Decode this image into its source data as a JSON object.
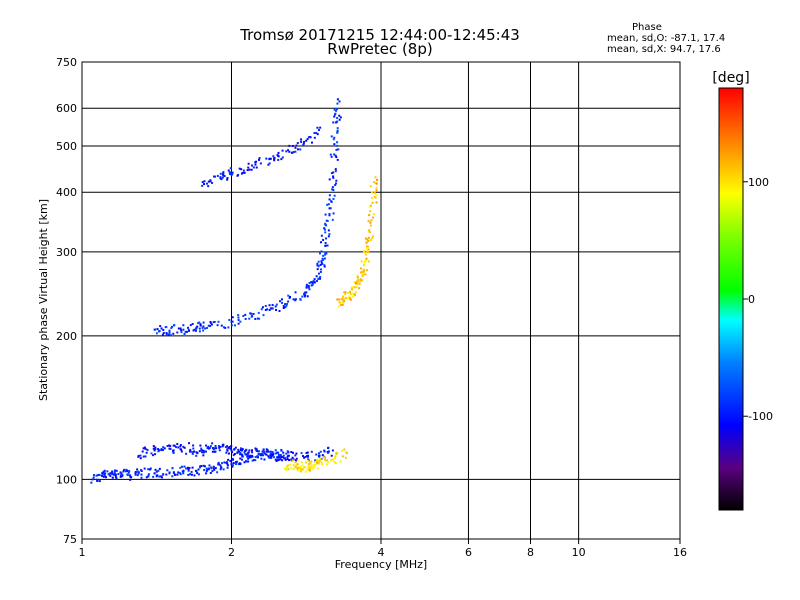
{
  "chart_data": {
    "type": "scatter",
    "title": "Tromsø 20171215 12:44:00-12:45:43",
    "subtitle": "RwPretec (8p)",
    "xlabel": "Frequency [MHz]",
    "ylabel": "Stationary phase Virtual Height [km]",
    "x_scale": "log2",
    "y_scale": "log",
    "xlim": [
      1,
      16
    ],
    "ylim": [
      75,
      750
    ],
    "xticks": [
      {
        "value": 1,
        "label": "1"
      },
      {
        "value": 2,
        "label": "2"
      },
      {
        "value": 4,
        "label": "4"
      },
      {
        "value": 6,
        "label": "6"
      },
      {
        "value": 8,
        "label": "8"
      },
      {
        "value": 10,
        "label": "10"
      },
      {
        "value": 16,
        "label": "16"
      }
    ],
    "yticks": [
      {
        "value": 75,
        "label": "75"
      },
      {
        "value": 100,
        "label": "100"
      },
      {
        "value": 200,
        "label": "200"
      },
      {
        "value": 300,
        "label": "300"
      },
      {
        "value": 400,
        "label": "400"
      },
      {
        "value": 500,
        "label": "500"
      },
      {
        "value": 600,
        "label": "600"
      },
      {
        "value": 750,
        "label": "750"
      }
    ],
    "grid": true,
    "stats": {
      "header": "Phase",
      "o_line": "mean, sd,O: -87.1, 17.4",
      "x_line": "mean, sd,X:  94.7, 17.6"
    },
    "colorbar": {
      "label": "[deg]",
      "range": [
        -180,
        180
      ],
      "ticks": [
        {
          "value": 100,
          "label": "100"
        },
        {
          "value": 0,
          "label": "0"
        },
        {
          "value": -100,
          "label": "-100"
        }
      ]
    },
    "series": [
      {
        "type": "O-mode low trace (E-region)",
        "phase": -95,
        "points": [
          [
            1.05,
            100
          ],
          [
            1.1,
            102
          ],
          [
            1.15,
            103
          ],
          [
            1.2,
            103
          ],
          [
            1.25,
            102
          ],
          [
            1.3,
            103
          ],
          [
            1.4,
            103
          ],
          [
            1.5,
            103
          ],
          [
            1.6,
            104
          ],
          [
            1.7,
            104
          ],
          [
            1.8,
            105
          ],
          [
            1.9,
            107
          ],
          [
            2.0,
            108
          ],
          [
            2.1,
            110
          ],
          [
            2.2,
            112
          ],
          [
            2.3,
            113
          ],
          [
            2.4,
            112
          ],
          [
            2.5,
            111
          ],
          [
            2.6,
            112
          ]
        ]
      },
      {
        "type": "O-mode upper E trace",
        "phase": -100,
        "points": [
          [
            1.3,
            112
          ],
          [
            1.4,
            115
          ],
          [
            1.5,
            116
          ],
          [
            1.6,
            117
          ],
          [
            1.7,
            114
          ],
          [
            1.8,
            116
          ],
          [
            1.9,
            117
          ],
          [
            2.0,
            115
          ],
          [
            2.1,
            115
          ],
          [
            2.2,
            114
          ],
          [
            2.4,
            113
          ],
          [
            2.6,
            112
          ],
          [
            2.8,
            111
          ],
          [
            3.0,
            112
          ],
          [
            3.2,
            115
          ]
        ]
      },
      {
        "type": "X-mode E trace",
        "phase": 100,
        "points": [
          [
            2.6,
            107
          ],
          [
            2.7,
            107
          ],
          [
            2.8,
            106
          ],
          [
            2.9,
            107
          ],
          [
            3.0,
            108
          ],
          [
            3.2,
            110
          ],
          [
            3.4,
            114
          ]
        ]
      },
      {
        "type": "O-mode F trace",
        "phase": -90,
        "points": [
          [
            1.4,
            206
          ],
          [
            1.5,
            205
          ],
          [
            1.6,
            206
          ],
          [
            1.7,
            208
          ],
          [
            1.8,
            210
          ],
          [
            2.0,
            214
          ],
          [
            2.2,
            220
          ],
          [
            2.4,
            228
          ],
          [
            2.6,
            236
          ],
          [
            2.8,
            245
          ],
          [
            2.9,
            255
          ],
          [
            3.0,
            270
          ],
          [
            3.05,
            290
          ],
          [
            3.1,
            320
          ],
          [
            3.15,
            360
          ],
          [
            3.2,
            410
          ],
          [
            3.22,
            480
          ],
          [
            3.25,
            560
          ],
          [
            3.3,
            620
          ]
        ]
      },
      {
        "type": "O-mode F multi-hop",
        "phase": -100,
        "points": [
          [
            1.75,
            420
          ],
          [
            1.9,
            430
          ],
          [
            2.0,
            440
          ],
          [
            2.2,
            455
          ],
          [
            2.4,
            470
          ],
          [
            2.6,
            490
          ],
          [
            2.8,
            510
          ],
          [
            3.0,
            540
          ]
        ]
      },
      {
        "type": "X-mode F trace",
        "phase": 110,
        "points": [
          [
            3.3,
            235
          ],
          [
            3.4,
            240
          ],
          [
            3.5,
            250
          ],
          [
            3.6,
            262
          ],
          [
            3.7,
            275
          ],
          [
            3.75,
            300
          ],
          [
            3.8,
            330
          ],
          [
            3.85,
            380
          ],
          [
            3.9,
            430
          ]
        ]
      }
    ]
  }
}
